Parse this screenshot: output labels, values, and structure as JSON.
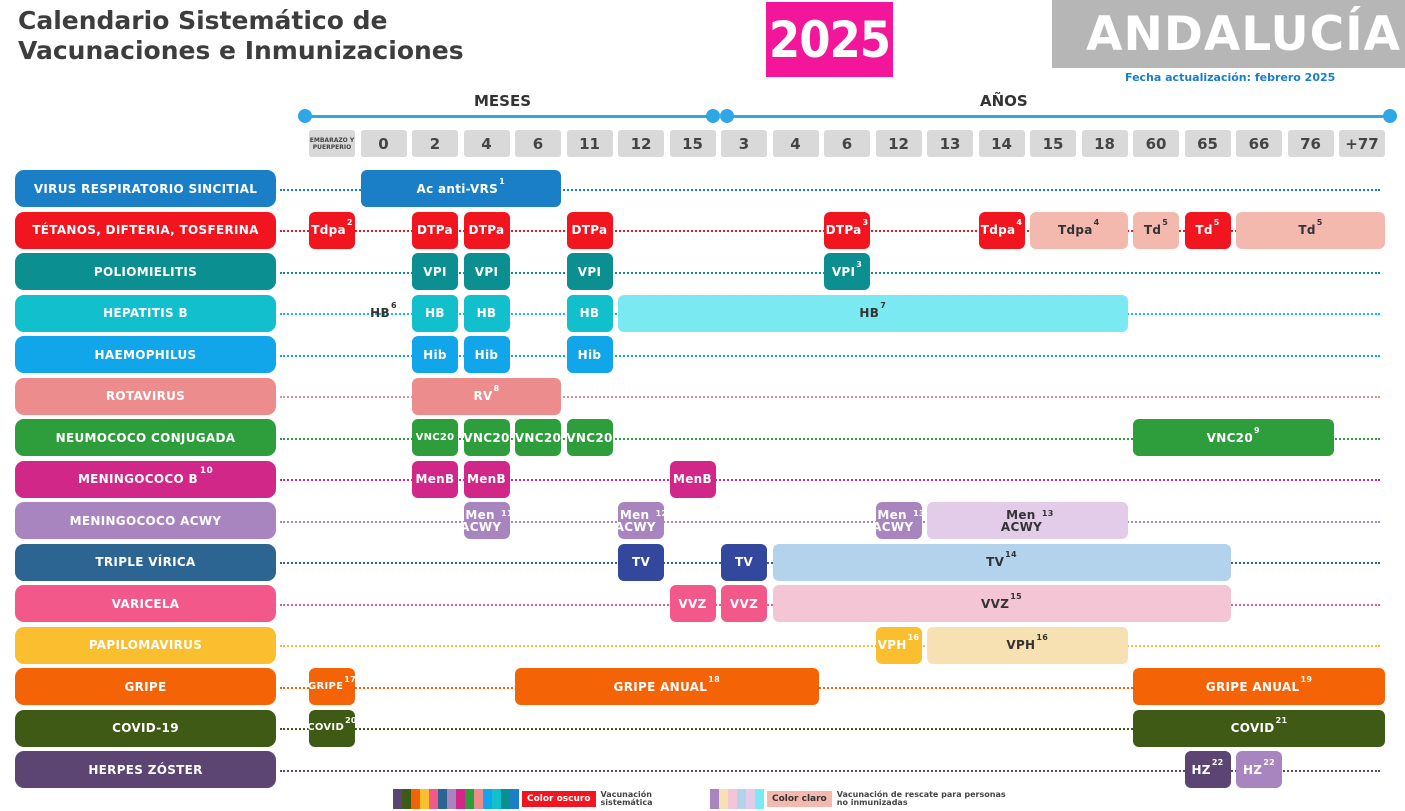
{
  "header": {
    "title_line1": "Calendario Sistemático de",
    "title_line2": "Vacunaciones e Inmunizaciones",
    "year": "2025",
    "region": "ANDALUCÍA",
    "updated": "Fecha actualización: febrero 2025"
  },
  "axis": {
    "months_label": "MESES",
    "years_label": "AÑOS",
    "color": "#2fa7e6"
  },
  "ticks": [
    "EMBARAZO Y PUERPERIO",
    "0",
    "2",
    "4",
    "6",
    "11",
    "12",
    "15",
    "3",
    "4",
    "6",
    "12",
    "13",
    "14",
    "15",
    "18",
    "60",
    "65",
    "66",
    "76",
    "+77"
  ],
  "rows": [
    {
      "label": "VIRUS RESPIRATORIO SINCITIAL",
      "sup": "",
      "color": "#1a7fc6",
      "cells": [
        {
          "from": 1,
          "to": 4,
          "text": "Ac anti-VRS",
          "sup": "1",
          "color": "#1a7fc6"
        }
      ]
    },
    {
      "label": "TÉTANOS, DIFTERIA, TOSFERINA",
      "sup": "",
      "color": "#f0151f",
      "cells": [
        {
          "from": 0,
          "to": 0,
          "text": "Tdpa",
          "sup": "2",
          "color": "#f0151f"
        },
        {
          "from": 2,
          "to": 2,
          "text": "DTPa",
          "sup": "",
          "color": "#f0151f"
        },
        {
          "from": 3,
          "to": 3,
          "text": "DTPa",
          "sup": "",
          "color": "#f0151f"
        },
        {
          "from": 5,
          "to": 5,
          "text": "DTPa",
          "sup": "",
          "color": "#f0151f"
        },
        {
          "from": 10,
          "to": 10,
          "text": "DTPa",
          "sup": "3",
          "color": "#f0151f"
        },
        {
          "from": 13,
          "to": 13,
          "text": "Tdpa",
          "sup": "4",
          "color": "#f0151f"
        },
        {
          "from": 14,
          "to": 15,
          "text": "Tdpa",
          "sup": "4",
          "color": "#f3b9ae",
          "dark": true
        },
        {
          "from": 16,
          "to": 16,
          "text": "Td",
          "sup": "5",
          "color": "#f3b9ae",
          "dark": true
        },
        {
          "from": 17,
          "to": 17,
          "text": "Td",
          "sup": "5",
          "color": "#f0151f"
        },
        {
          "from": 18,
          "to": 20,
          "text": "Td",
          "sup": "5",
          "color": "#f3b9ae",
          "dark": true
        }
      ]
    },
    {
      "label": "POLIOMIELITIS",
      "sup": "",
      "color": "#0b8f91",
      "cells": [
        {
          "from": 2,
          "to": 2,
          "text": "VPI",
          "sup": "",
          "color": "#0b8f91"
        },
        {
          "from": 3,
          "to": 3,
          "text": "VPI",
          "sup": "",
          "color": "#0b8f91"
        },
        {
          "from": 5,
          "to": 5,
          "text": "VPI",
          "sup": "",
          "color": "#0b8f91"
        },
        {
          "from": 10,
          "to": 10,
          "text": "VPI",
          "sup": "3",
          "color": "#0b8f91"
        }
      ]
    },
    {
      "label": "HEPATITIS B",
      "sup": "",
      "color": "#12bfcc",
      "cells": [
        {
          "from": 1,
          "to": 1,
          "text": "HB",
          "sup": "6",
          "color": "transparent",
          "plain": true
        },
        {
          "from": 2,
          "to": 2,
          "text": "HB",
          "sup": "",
          "color": "#12bfcc"
        },
        {
          "from": 3,
          "to": 3,
          "text": "HB",
          "sup": "",
          "color": "#12bfcc"
        },
        {
          "from": 5,
          "to": 5,
          "text": "HB",
          "sup": "",
          "color": "#12bfcc"
        },
        {
          "from": 6,
          "to": 15,
          "text": "HB",
          "sup": "7",
          "color": "#7ae9f1",
          "dark": true
        }
      ]
    },
    {
      "label": "HAEMOPHILUS",
      "sup": "",
      "color": "#11a5ea",
      "cells": [
        {
          "from": 2,
          "to": 2,
          "text": "Hib",
          "sup": "",
          "color": "#11a5ea"
        },
        {
          "from": 3,
          "to": 3,
          "text": "Hib",
          "sup": "",
          "color": "#11a5ea"
        },
        {
          "from": 5,
          "to": 5,
          "text": "Hib",
          "sup": "",
          "color": "#11a5ea"
        }
      ]
    },
    {
      "label": "ROTAVIRUS",
      "sup": "",
      "color": "#ec8c8c",
      "cells": [
        {
          "from": 2,
          "to": 4,
          "text": "RV",
          "sup": "8",
          "color": "#ec8c8c"
        }
      ]
    },
    {
      "label": "NEUMOCOCO CONJUGADA",
      "sup": "",
      "color": "#2e9e3c",
      "cells": [
        {
          "from": 2,
          "to": 2,
          "text": "VNC20",
          "sup": "",
          "color": "#2e9e3c",
          "small": true
        },
        {
          "from": 3,
          "to": 3,
          "text": "VNC20",
          "sup": "",
          "color": "#2e9e3c"
        },
        {
          "from": 4,
          "to": 4,
          "text": "VNC20",
          "sup": "",
          "color": "#2e9e3c"
        },
        {
          "from": 5,
          "to": 5,
          "text": "VNC20",
          "sup": "",
          "color": "#2e9e3c"
        },
        {
          "from": 16,
          "to": 19,
          "text": "VNC20",
          "sup": "9",
          "color": "#2e9e3c"
        }
      ]
    },
    {
      "label": "MENINGOCOCO B",
      "sup": "10",
      "color": "#d02789",
      "cells": [
        {
          "from": 2,
          "to": 2,
          "text": "MenB",
          "sup": "",
          "color": "#d02789"
        },
        {
          "from": 3,
          "to": 3,
          "text": "MenB",
          "sup": "",
          "color": "#d02789"
        },
        {
          "from": 7,
          "to": 7,
          "text": "MenB",
          "sup": "",
          "color": "#d02789"
        }
      ]
    },
    {
      "label": "MENINGOCOCO ACWY",
      "sup": "",
      "color": "#a985bf",
      "cells": [
        {
          "from": 3,
          "to": 3,
          "text": "Men ACWY",
          "sup": "11",
          "color": "#a985bf",
          "two": true
        },
        {
          "from": 6,
          "to": 6,
          "text": "Men ACWY",
          "sup": "12",
          "color": "#a985bf",
          "two": true
        },
        {
          "from": 11,
          "to": 11,
          "text": "Men ACWY",
          "sup": "13",
          "color": "#a985bf",
          "two": true
        },
        {
          "from": 12,
          "to": 15,
          "text": "Men ACWY",
          "sup": "13",
          "color": "#e3cce9",
          "dark": true,
          "two": true
        }
      ]
    },
    {
      "label": "TRIPLE VÍRICA",
      "sup": "",
      "color": "#2c6591",
      "cells": [
        {
          "from": 6,
          "to": 6,
          "text": "TV",
          "sup": "",
          "color": "#33489c"
        },
        {
          "from": 8,
          "to": 8,
          "text": "TV",
          "sup": "",
          "color": "#33489c"
        },
        {
          "from": 9,
          "to": 17,
          "text": "TV",
          "sup": "14",
          "color": "#b3d2ec",
          "dark": true
        }
      ]
    },
    {
      "label": "VARICELA",
      "sup": "",
      "color": "#f3588a",
      "cells": [
        {
          "from": 7,
          "to": 7,
          "text": "VVZ",
          "sup": "",
          "color": "#f3588a"
        },
        {
          "from": 8,
          "to": 8,
          "text": "VVZ",
          "sup": "",
          "color": "#f3588a"
        },
        {
          "from": 9,
          "to": 17,
          "text": "VVZ",
          "sup": "15",
          "color": "#f4c6d5",
          "dark": true
        }
      ]
    },
    {
      "label": "PAPILOMAVIRUS",
      "sup": "",
      "color": "#fbbe2f",
      "cells": [
        {
          "from": 11,
          "to": 11,
          "text": "VPH",
          "sup": "16",
          "color": "#fbbe2f"
        },
        {
          "from": 12,
          "to": 15,
          "text": "VPH",
          "sup": "16",
          "color": "#f7e1b2",
          "dark": true
        }
      ]
    },
    {
      "label": "GRIPE",
      "sup": "",
      "color": "#f56307",
      "cells": [
        {
          "from": 0,
          "to": 0,
          "text": "GRIPE",
          "sup": "17",
          "color": "#f56307",
          "small": true
        },
        {
          "from": 4,
          "to": 9,
          "text": "GRIPE ANUAL",
          "sup": "18",
          "color": "#f56307"
        },
        {
          "from": 16,
          "to": 20,
          "text": "GRIPE ANUAL",
          "sup": "19",
          "color": "#f56307"
        }
      ]
    },
    {
      "label": "COVID-19",
      "sup": "",
      "color": "#3f5a14",
      "cells": [
        {
          "from": 0,
          "to": 0,
          "text": "COVID",
          "sup": "20",
          "color": "#3f5a14",
          "small": true
        },
        {
          "from": 16,
          "to": 20,
          "text": "COVID",
          "sup": "21",
          "color": "#3f5a14"
        }
      ]
    },
    {
      "label": "HERPES ZÓSTER",
      "sup": "",
      "color": "#5c4573",
      "cells": [
        {
          "from": 17,
          "to": 17,
          "text": "HZ",
          "sup": "22",
          "color": "#5c4573"
        },
        {
          "from": 18,
          "to": 18,
          "text": "HZ",
          "sup": "22",
          "color": "#a985bf"
        }
      ]
    }
  ],
  "legend": {
    "dark_tag": "Color oscuro",
    "dark_tag_color": "#f0151f",
    "dark_text": "Vacunación sistemática",
    "light_tag": "Color claro",
    "light_tag_color": "#f3b9ae",
    "light_text": "Vacunación de rescate para personas no inmunizadas",
    "dark_swatches": [
      "#5c4573",
      "#3f5a14",
      "#f56307",
      "#fbbe2f",
      "#f3588a",
      "#2c6591",
      "#a985bf",
      "#d02789",
      "#2e9e3c",
      "#ec8c8c",
      "#11a5ea",
      "#12bfcc",
      "#0b8f91",
      "#1a7fc6"
    ],
    "light_swatches": [
      "#a985bf",
      "#f7e1b2",
      "#f4c6d5",
      "#b3d2ec",
      "#e3cce9",
      "#7ae9f1"
    ]
  }
}
